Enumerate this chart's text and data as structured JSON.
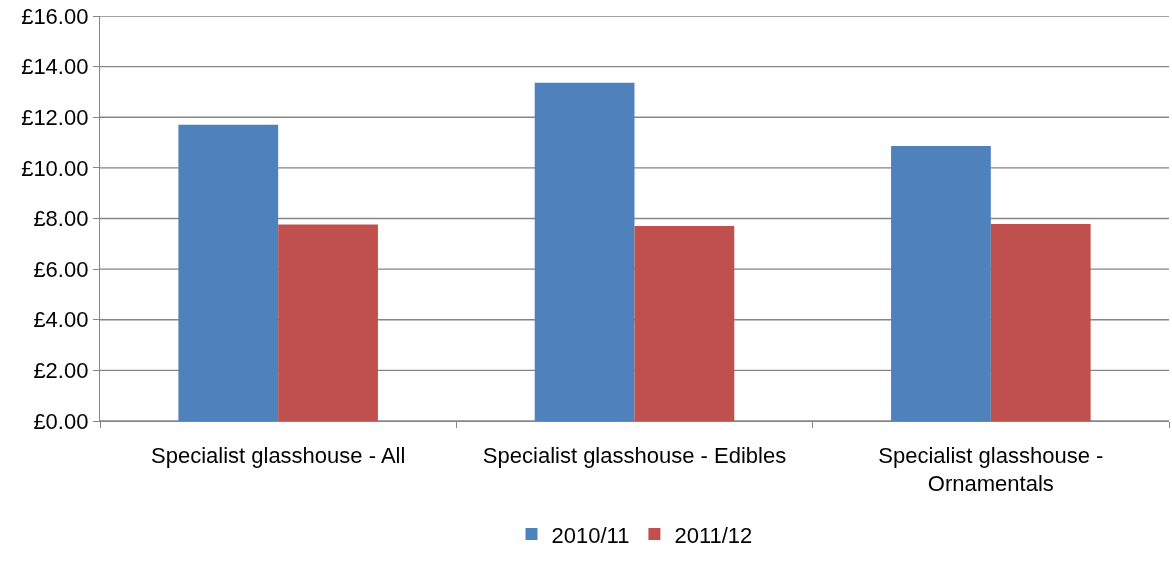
{
  "chart_data": {
    "type": "bar",
    "categories": [
      "Specialist glasshouse - All",
      "Specialist glasshouse - Edibles",
      "Specialist glasshouse - Ornamentals"
    ],
    "series": [
      {
        "name": "2010/11",
        "color": "#4f81bd",
        "values": [
          11.7,
          13.36,
          10.86
        ]
      },
      {
        "name": "2011/12",
        "color": "#c0504d",
        "values": [
          7.76,
          7.7,
          7.78
        ]
      }
    ],
    "ylim": [
      0,
      16
    ],
    "yticks": [
      {
        "value": 0,
        "label": "£0.00"
      },
      {
        "value": 2,
        "label": "£2.00"
      },
      {
        "value": 4,
        "label": "£4.00"
      },
      {
        "value": 6,
        "label": "£6.00"
      },
      {
        "value": 8,
        "label": "£8.00"
      },
      {
        "value": 10,
        "label": "£10.00"
      },
      {
        "value": 12,
        "label": "£12.00"
      },
      {
        "value": 14,
        "label": "£14.00"
      },
      {
        "value": 16,
        "label": "£16.00"
      }
    ],
    "grid": "y",
    "legend": "bottom"
  }
}
